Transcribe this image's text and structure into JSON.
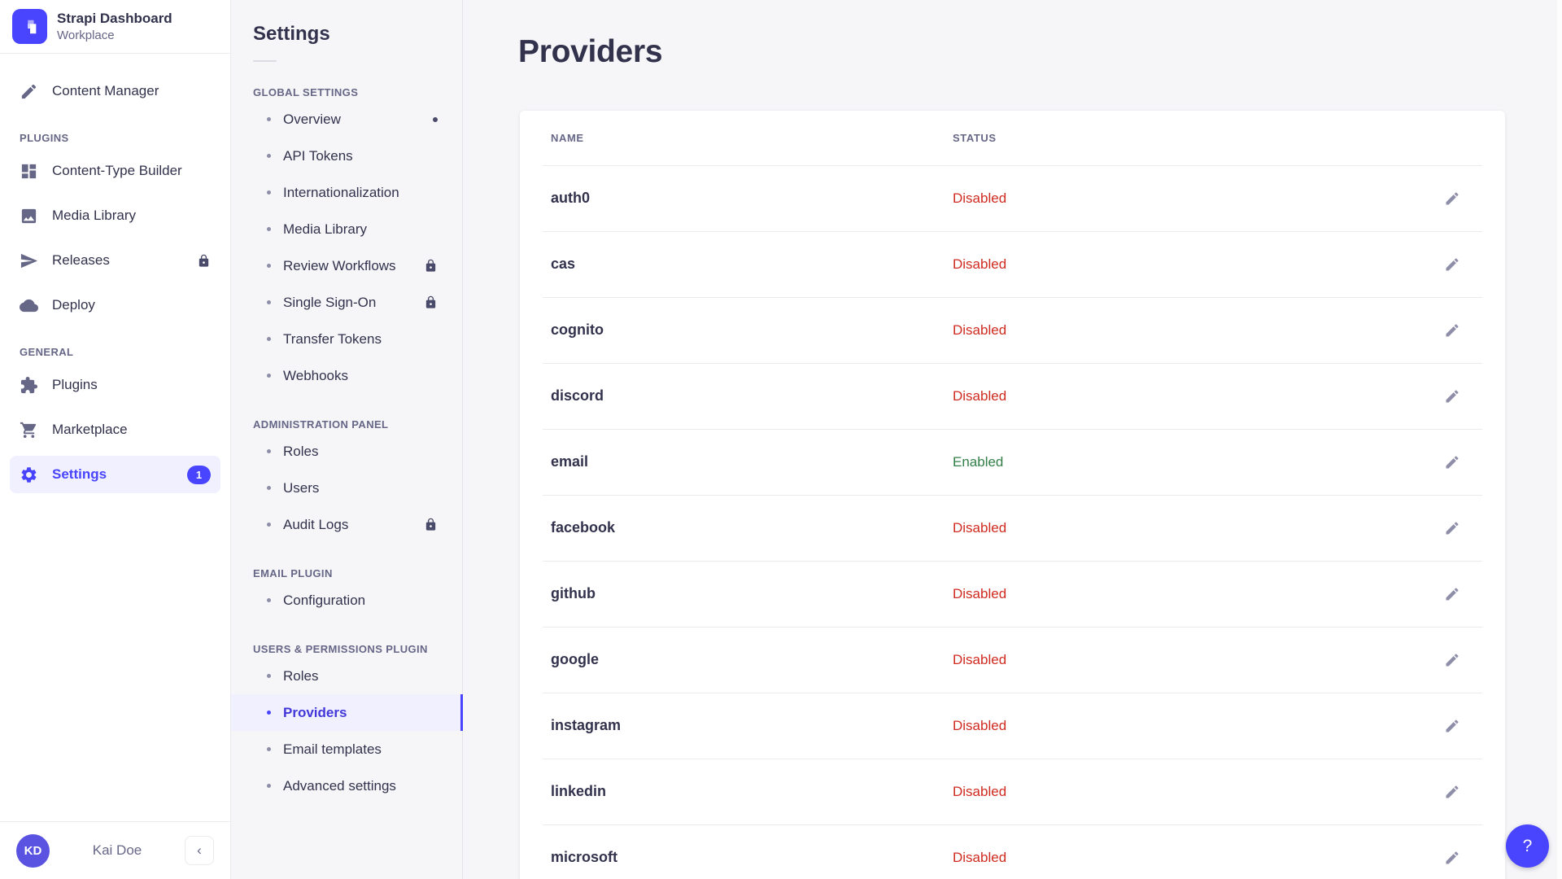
{
  "accent_color": "#4945ff",
  "sidebar": {
    "brand": {
      "title": "Strapi Dashboard",
      "subtitle": "Workplace"
    },
    "sections": [
      {
        "label": "",
        "items": [
          {
            "label": "Content Manager",
            "icon": "write-icon"
          }
        ]
      },
      {
        "label": "PLUGINS",
        "items": [
          {
            "label": "Content-Type Builder",
            "icon": "layout-icon"
          },
          {
            "label": "Media Library",
            "icon": "image-icon"
          },
          {
            "label": "Releases",
            "icon": "paper-plane-icon",
            "locked": true
          },
          {
            "label": "Deploy",
            "icon": "cloud-icon"
          }
        ]
      },
      {
        "label": "GENERAL",
        "items": [
          {
            "label": "Plugins",
            "icon": "puzzle-icon"
          },
          {
            "label": "Marketplace",
            "icon": "cart-icon"
          },
          {
            "label": "Settings",
            "icon": "gear-icon",
            "active": true,
            "badge": "1"
          }
        ]
      }
    ],
    "user": {
      "initials": "KD",
      "name": "Kai Doe"
    },
    "collapse_glyph": "‹"
  },
  "subnav": {
    "title": "Settings",
    "sections": [
      {
        "label": "GLOBAL SETTINGS",
        "items": [
          {
            "label": "Overview",
            "dot": true
          },
          {
            "label": "API Tokens"
          },
          {
            "label": "Internationalization"
          },
          {
            "label": "Media Library"
          },
          {
            "label": "Review Workflows",
            "locked": true
          },
          {
            "label": "Single Sign-On",
            "locked": true
          },
          {
            "label": "Transfer Tokens"
          },
          {
            "label": "Webhooks"
          }
        ]
      },
      {
        "label": "ADMINISTRATION PANEL",
        "items": [
          {
            "label": "Roles"
          },
          {
            "label": "Users"
          },
          {
            "label": "Audit Logs",
            "locked": true
          }
        ]
      },
      {
        "label": "EMAIL PLUGIN",
        "items": [
          {
            "label": "Configuration"
          }
        ]
      },
      {
        "label": "USERS & PERMISSIONS PLUGIN",
        "items": [
          {
            "label": "Roles"
          },
          {
            "label": "Providers",
            "active": true
          },
          {
            "label": "Email templates"
          },
          {
            "label": "Advanced settings"
          }
        ]
      }
    ]
  },
  "main": {
    "title": "Providers",
    "table": {
      "columns": [
        "NAME",
        "STATUS"
      ],
      "rows": [
        {
          "name": "auth0",
          "status": "Disabled"
        },
        {
          "name": "cas",
          "status": "Disabled"
        },
        {
          "name": "cognito",
          "status": "Disabled"
        },
        {
          "name": "discord",
          "status": "Disabled"
        },
        {
          "name": "email",
          "status": "Enabled"
        },
        {
          "name": "facebook",
          "status": "Disabled"
        },
        {
          "name": "github",
          "status": "Disabled"
        },
        {
          "name": "google",
          "status": "Disabled"
        },
        {
          "name": "instagram",
          "status": "Disabled"
        },
        {
          "name": "linkedin",
          "status": "Disabled"
        },
        {
          "name": "microsoft",
          "status": "Disabled"
        }
      ]
    },
    "status_colors": {
      "Enabled": "#328048",
      "Disabled": "#d02b20"
    },
    "help_label": "?"
  }
}
